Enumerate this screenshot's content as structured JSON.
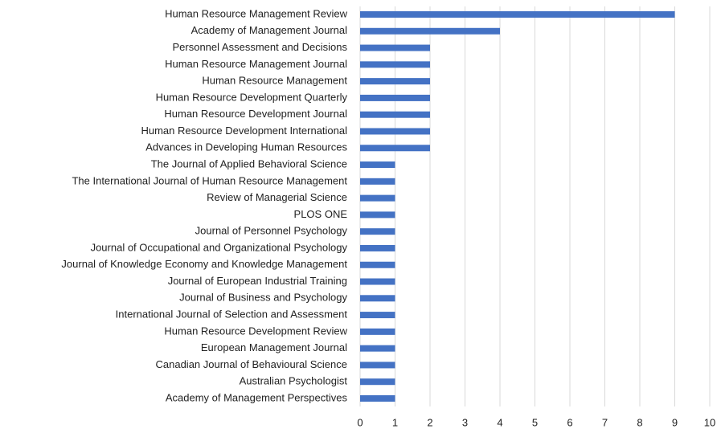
{
  "chart_data": {
    "type": "bar",
    "orientation": "horizontal",
    "categories": [
      "Human Resource Management Review",
      "Academy of Management Journal",
      "Personnel Assessment and Decisions",
      "Human Resource Management Journal",
      "Human Resource Management",
      "Human Resource Development Quarterly",
      "Human Resource Development Journal",
      "Human Resource Development International",
      "Advances in Developing Human Resources",
      "The Journal of Applied Behavioral Science",
      "The International Journal of Human Resource Management",
      "Review of Managerial Science",
      "PLOS ONE",
      "Journal of Personnel Psychology",
      "Journal of Occupational and Organizational Psychology",
      "Journal of Knowledge Economy and Knowledge Management",
      "Journal of European Industrial Training",
      "Journal of Business and Psychology",
      "International Journal of Selection and Assessment",
      "Human Resource Development Review",
      "European Management Journal",
      "Canadian Journal of Behavioural Science",
      "Australian Psychologist",
      "Academy of Management Perspectives"
    ],
    "values": [
      9,
      4,
      2,
      2,
      2,
      2,
      2,
      2,
      2,
      1,
      1,
      1,
      1,
      1,
      1,
      1,
      1,
      1,
      1,
      1,
      1,
      1,
      1,
      1
    ],
    "color": "#4472c4",
    "xlim": [
      0,
      10
    ],
    "xticks": [
      0,
      1,
      2,
      3,
      4,
      5,
      6,
      7,
      8,
      9,
      10
    ],
    "grid": true
  }
}
